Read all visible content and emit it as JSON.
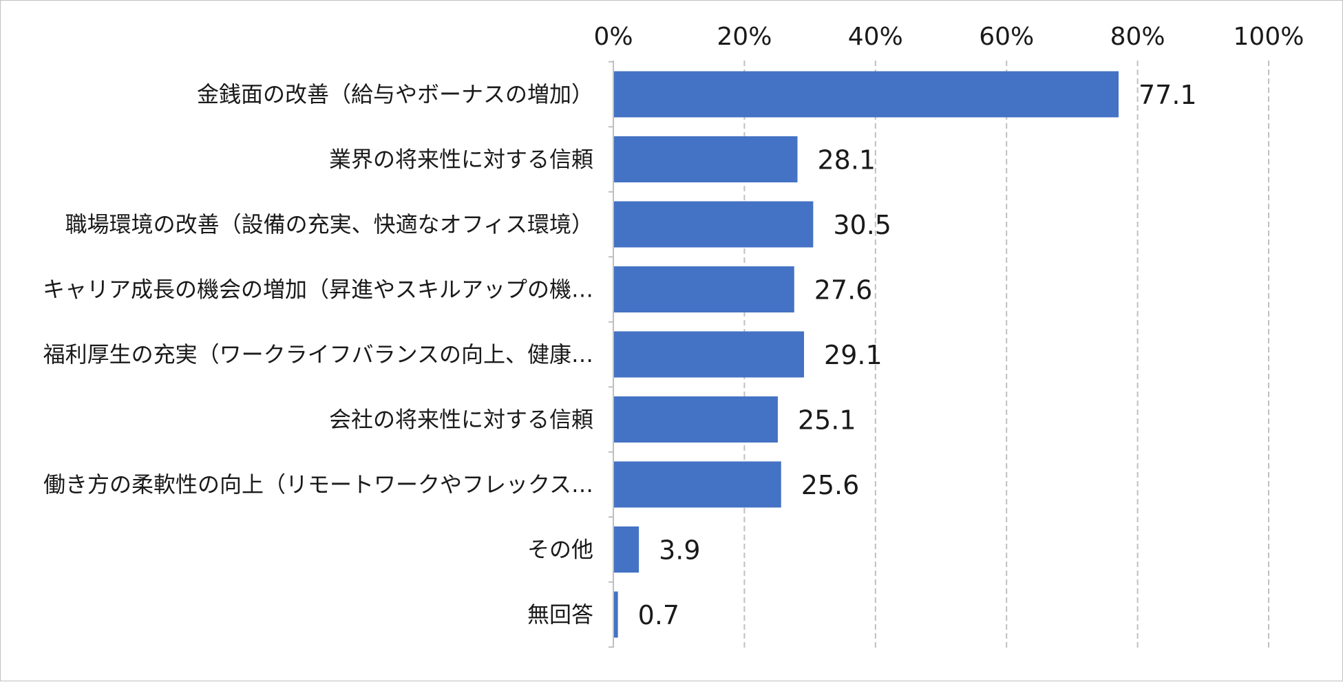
{
  "chart_data": {
    "type": "bar",
    "orientation": "horizontal",
    "categories": [
      "金銭面の改善（給与やボーナスの増加）",
      "業界の将来性に対する信頼",
      "職場環境の改善（設備の充実、快適なオフィス環境）",
      "キャリア成長の機会の増加（昇進やスキルアップの機…",
      "福利厚生の充実（ワークライフバランスの向上、健康…",
      "会社の将来性に対する信頼",
      "働き方の柔軟性の向上（リモートワークやフレックス…",
      "その他",
      "無回答"
    ],
    "values": [
      77.1,
      28.1,
      30.5,
      27.6,
      29.1,
      25.1,
      25.6,
      3.9,
      0.7
    ],
    "value_labels": [
      "77.1",
      "28.1",
      "30.5",
      "27.6",
      "29.1",
      "25.1",
      "25.6",
      "3.9",
      "0.7"
    ],
    "xlim": [
      0,
      100
    ],
    "x_ticks": [
      0,
      20,
      40,
      60,
      80,
      100
    ],
    "x_tick_labels": [
      "0%",
      "20%",
      "40%",
      "60%",
      "80%",
      "100%"
    ],
    "x_axis_position": "top",
    "grid": "vertical dashed",
    "legend": "none",
    "bar_color": "#4472c4",
    "grid_color": "#bfbfbf",
    "axis_color": "#bfbfbf",
    "text_color": "#1a1a1a"
  }
}
